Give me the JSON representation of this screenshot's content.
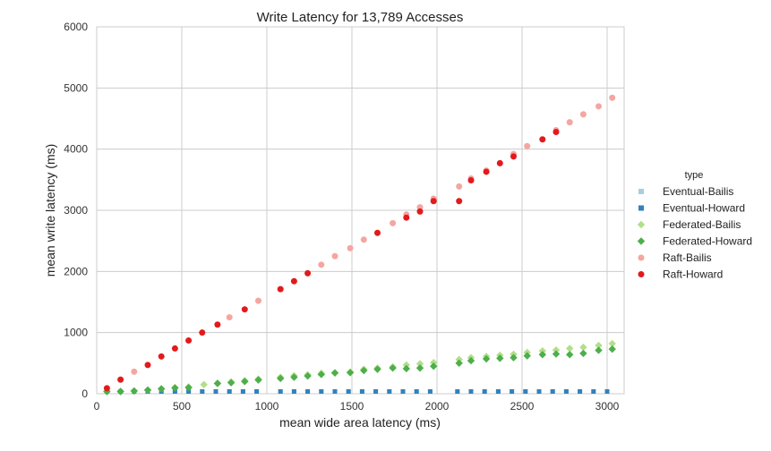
{
  "chart_data": {
    "type": "scatter",
    "title": "Write Latency for 13,789 Accesses",
    "xlabel": "mean wide area latency (ms)",
    "ylabel": "mean write latency (ms)",
    "xlim": [
      0,
      3100
    ],
    "ylim": [
      0,
      6000
    ],
    "xticks": [
      "0",
      "500",
      "1000",
      "1500",
      "2000",
      "2500",
      "3000"
    ],
    "xtick_values": [
      0,
      500,
      1000,
      1500,
      2000,
      2500,
      3000
    ],
    "yticks": [
      "0",
      "1000",
      "2000",
      "3000",
      "4000",
      "5000",
      "6000"
    ],
    "ytick_values": [
      0,
      1000,
      2000,
      3000,
      4000,
      5000,
      6000
    ],
    "grid": true,
    "legend": {
      "title": "type",
      "placement": "right"
    },
    "series": [
      {
        "name": "Eventual-Bailis",
        "marker": "square",
        "color": "#a6cee3",
        "points": [
          [
            60,
            5
          ],
          [
            140,
            5
          ],
          [
            220,
            5
          ],
          [
            300,
            5
          ],
          [
            380,
            5
          ],
          [
            460,
            5
          ],
          [
            540,
            5
          ],
          [
            620,
            5
          ],
          [
            700,
            5
          ],
          [
            780,
            5
          ],
          [
            860,
            5
          ],
          [
            940,
            5
          ],
          [
            1080,
            5
          ],
          [
            1160,
            5
          ],
          [
            1240,
            5
          ],
          [
            1320,
            5
          ],
          [
            1400,
            5
          ],
          [
            1480,
            5
          ],
          [
            1560,
            5
          ],
          [
            1640,
            5
          ],
          [
            1720,
            5
          ],
          [
            1800,
            5
          ],
          [
            1880,
            5
          ],
          [
            1960,
            5
          ],
          [
            2120,
            5
          ],
          [
            2200,
            5
          ],
          [
            2280,
            5
          ],
          [
            2360,
            5
          ],
          [
            2440,
            5
          ],
          [
            2520,
            5
          ],
          [
            2600,
            5
          ],
          [
            2680,
            5
          ],
          [
            2760,
            5
          ],
          [
            2840,
            5
          ],
          [
            2920,
            5
          ],
          [
            3000,
            5
          ]
        ]
      },
      {
        "name": "Eventual-Howard",
        "marker": "square",
        "color": "#3182bd",
        "points": [
          [
            60,
            10
          ],
          [
            140,
            10
          ],
          [
            220,
            10
          ],
          [
            300,
            10
          ],
          [
            380,
            10
          ],
          [
            460,
            10
          ],
          [
            540,
            10
          ],
          [
            620,
            10
          ],
          [
            700,
            10
          ],
          [
            780,
            10
          ],
          [
            860,
            10
          ],
          [
            940,
            10
          ],
          [
            1080,
            10
          ],
          [
            1160,
            10
          ],
          [
            1240,
            10
          ],
          [
            1320,
            10
          ],
          [
            1400,
            10
          ],
          [
            1480,
            10
          ],
          [
            1560,
            10
          ],
          [
            1640,
            10
          ],
          [
            1720,
            10
          ],
          [
            1800,
            10
          ],
          [
            1880,
            10
          ],
          [
            1960,
            10
          ],
          [
            2120,
            10
          ],
          [
            2200,
            10
          ],
          [
            2280,
            10
          ],
          [
            2360,
            10
          ],
          [
            2440,
            10
          ],
          [
            2520,
            10
          ],
          [
            2600,
            10
          ],
          [
            2680,
            10
          ],
          [
            2760,
            10
          ],
          [
            2840,
            10
          ],
          [
            2920,
            10
          ],
          [
            3000,
            10
          ]
        ]
      },
      {
        "name": "Federated-Bailis",
        "marker": "diamond",
        "color": "#b2df8a",
        "points": [
          [
            60,
            15
          ],
          [
            140,
            30
          ],
          [
            220,
            45
          ],
          [
            300,
            60
          ],
          [
            380,
            80
          ],
          [
            460,
            100
          ],
          [
            540,
            110
          ],
          [
            630,
            150
          ],
          [
            710,
            165
          ],
          [
            790,
            195
          ],
          [
            870,
            215
          ],
          [
            950,
            240
          ],
          [
            1080,
            270
          ],
          [
            1160,
            295
          ],
          [
            1240,
            310
          ],
          [
            1320,
            335
          ],
          [
            1400,
            345
          ],
          [
            1490,
            355
          ],
          [
            1570,
            400
          ],
          [
            1650,
            420
          ],
          [
            1740,
            440
          ],
          [
            1820,
            470
          ],
          [
            1900,
            490
          ],
          [
            1980,
            510
          ],
          [
            2130,
            560
          ],
          [
            2200,
            590
          ],
          [
            2290,
            610
          ],
          [
            2370,
            630
          ],
          [
            2450,
            645
          ],
          [
            2530,
            675
          ],
          [
            2620,
            700
          ],
          [
            2700,
            715
          ],
          [
            2780,
            740
          ],
          [
            2860,
            760
          ],
          [
            2950,
            790
          ],
          [
            3030,
            820
          ]
        ]
      },
      {
        "name": "Federated-Howard",
        "marker": "diamond",
        "color": "#4daf4a",
        "points": [
          [
            60,
            10
          ],
          [
            140,
            25
          ],
          [
            220,
            45
          ],
          [
            300,
            60
          ],
          [
            380,
            80
          ],
          [
            460,
            95
          ],
          [
            540,
            100
          ],
          [
            710,
            170
          ],
          [
            790,
            180
          ],
          [
            870,
            200
          ],
          [
            950,
            225
          ],
          [
            1080,
            250
          ],
          [
            1160,
            270
          ],
          [
            1240,
            290
          ],
          [
            1320,
            315
          ],
          [
            1400,
            340
          ],
          [
            1490,
            345
          ],
          [
            1570,
            380
          ],
          [
            1650,
            400
          ],
          [
            1740,
            420
          ],
          [
            1820,
            410
          ],
          [
            1900,
            420
          ],
          [
            1980,
            450
          ],
          [
            2130,
            500
          ],
          [
            2200,
            540
          ],
          [
            2290,
            570
          ],
          [
            2370,
            580
          ],
          [
            2450,
            590
          ],
          [
            2530,
            620
          ],
          [
            2620,
            640
          ],
          [
            2700,
            650
          ],
          [
            2780,
            640
          ],
          [
            2860,
            660
          ],
          [
            2950,
            710
          ],
          [
            3030,
            730
          ]
        ]
      },
      {
        "name": "Raft-Bailis",
        "marker": "circle",
        "color": "#f4a6a0",
        "points": [
          [
            220,
            360
          ],
          [
            780,
            1250
          ],
          [
            950,
            1520
          ],
          [
            1320,
            2110
          ],
          [
            1400,
            2250
          ],
          [
            1490,
            2380
          ],
          [
            1570,
            2520
          ],
          [
            1740,
            2790
          ],
          [
            1820,
            2930
          ],
          [
            1900,
            3050
          ],
          [
            1980,
            3190
          ],
          [
            2130,
            3390
          ],
          [
            2200,
            3520
          ],
          [
            2290,
            3650
          ],
          [
            2450,
            3920
          ],
          [
            2530,
            4050
          ],
          [
            2700,
            4310
          ],
          [
            2780,
            4440
          ],
          [
            2860,
            4570
          ],
          [
            2950,
            4700
          ],
          [
            3030,
            4840
          ]
        ]
      },
      {
        "name": "Raft-Howard",
        "marker": "circle",
        "color": "#e31a1c",
        "points": [
          [
            60,
            90
          ],
          [
            140,
            230
          ],
          [
            300,
            470
          ],
          [
            380,
            610
          ],
          [
            460,
            740
          ],
          [
            540,
            870
          ],
          [
            620,
            1000
          ],
          [
            710,
            1130
          ],
          [
            870,
            1380
          ],
          [
            1080,
            1710
          ],
          [
            1160,
            1840
          ],
          [
            1240,
            1970
          ],
          [
            1650,
            2630
          ],
          [
            1820,
            2880
          ],
          [
            1900,
            2980
          ],
          [
            1980,
            3150
          ],
          [
            2130,
            3150
          ],
          [
            2200,
            3490
          ],
          [
            2290,
            3630
          ],
          [
            2370,
            3770
          ],
          [
            2450,
            3880
          ],
          [
            2620,
            4160
          ],
          [
            2700,
            4280
          ]
        ]
      }
    ]
  }
}
